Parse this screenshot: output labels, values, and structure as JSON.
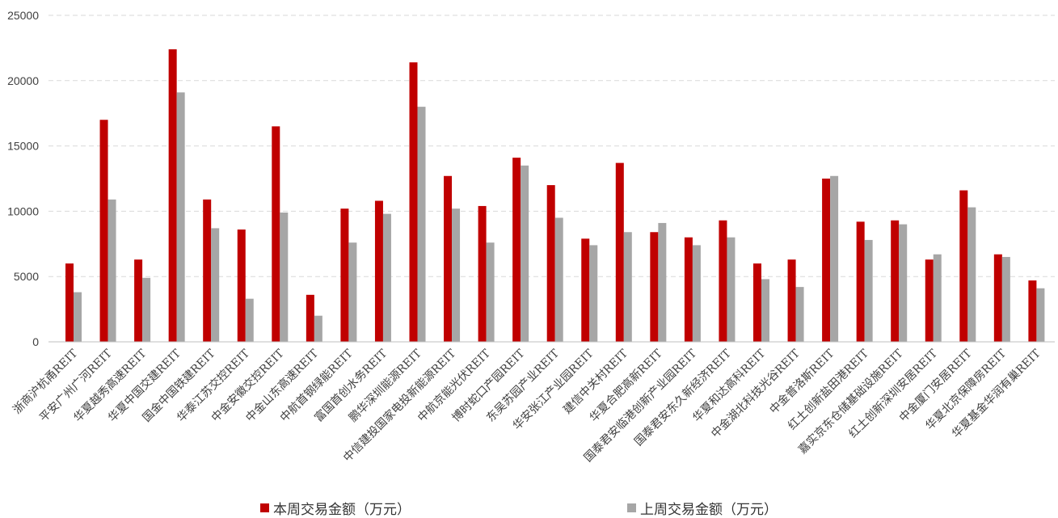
{
  "chart_data": {
    "type": "bar",
    "categories": [
      "浙商沪杭甬REIT",
      "平安广州广河REIT",
      "华夏越秀高速REIT",
      "华夏中国交建REIT",
      "国金中国铁建REIT",
      "华泰江苏交控REIT",
      "中金安徽交控REIT",
      "中金山东高速REIT",
      "中航首钢绿能REIT",
      "富国首创水务REIT",
      "鹏华深圳能源REIT",
      "中信建投国家电投新能源REIT",
      "中航京能光伏REIT",
      "博时蛇口产园REIT",
      "东吴苏园产业REIT",
      "华安张江产业园REIT",
      "建信中关村REIT",
      "华夏合肥高新REIT",
      "国泰君安临港创新产业园REIT",
      "国泰君安东久新经济REIT",
      "华夏和达高科REIT",
      "中金湖北科技光谷REIT",
      "中金普洛斯REIT",
      "红土创新盐田港REIT",
      "嘉实京东仓储基础设施REIT",
      "红土创新深圳安居REIT",
      "中金厦门安居REIT",
      "华夏北京保障房REIT",
      "华夏基金华润有巢REIT"
    ],
    "series": [
      {
        "name": "本周交易金额（万元）",
        "color": "#c00000",
        "values": [
          6000,
          17000,
          6300,
          22400,
          10900,
          8600,
          16500,
          3600,
          10200,
          10800,
          21400,
          12700,
          10400,
          14100,
          12000,
          7900,
          13700,
          8400,
          8000,
          9300,
          6000,
          6300,
          12500,
          9200,
          9300,
          6300,
          11600,
          6700,
          4700
        ]
      },
      {
        "name": "上周交易金额（万元）",
        "color": "#a6a6a6",
        "values": [
          3800,
          10900,
          4900,
          19100,
          8700,
          3300,
          9900,
          2000,
          7600,
          9800,
          18000,
          10200,
          7600,
          13500,
          9500,
          7400,
          8400,
          9100,
          7400,
          8000,
          4800,
          4200,
          12700,
          7800,
          9000,
          6700,
          10300,
          6500,
          4100
        ]
      }
    ],
    "yticks": [
      "0",
      "5000",
      "10000",
      "15000",
      "20000",
      "25000"
    ],
    "ylim": [
      0,
      25000
    ],
    "grid": true,
    "legend_position": "bottom"
  }
}
